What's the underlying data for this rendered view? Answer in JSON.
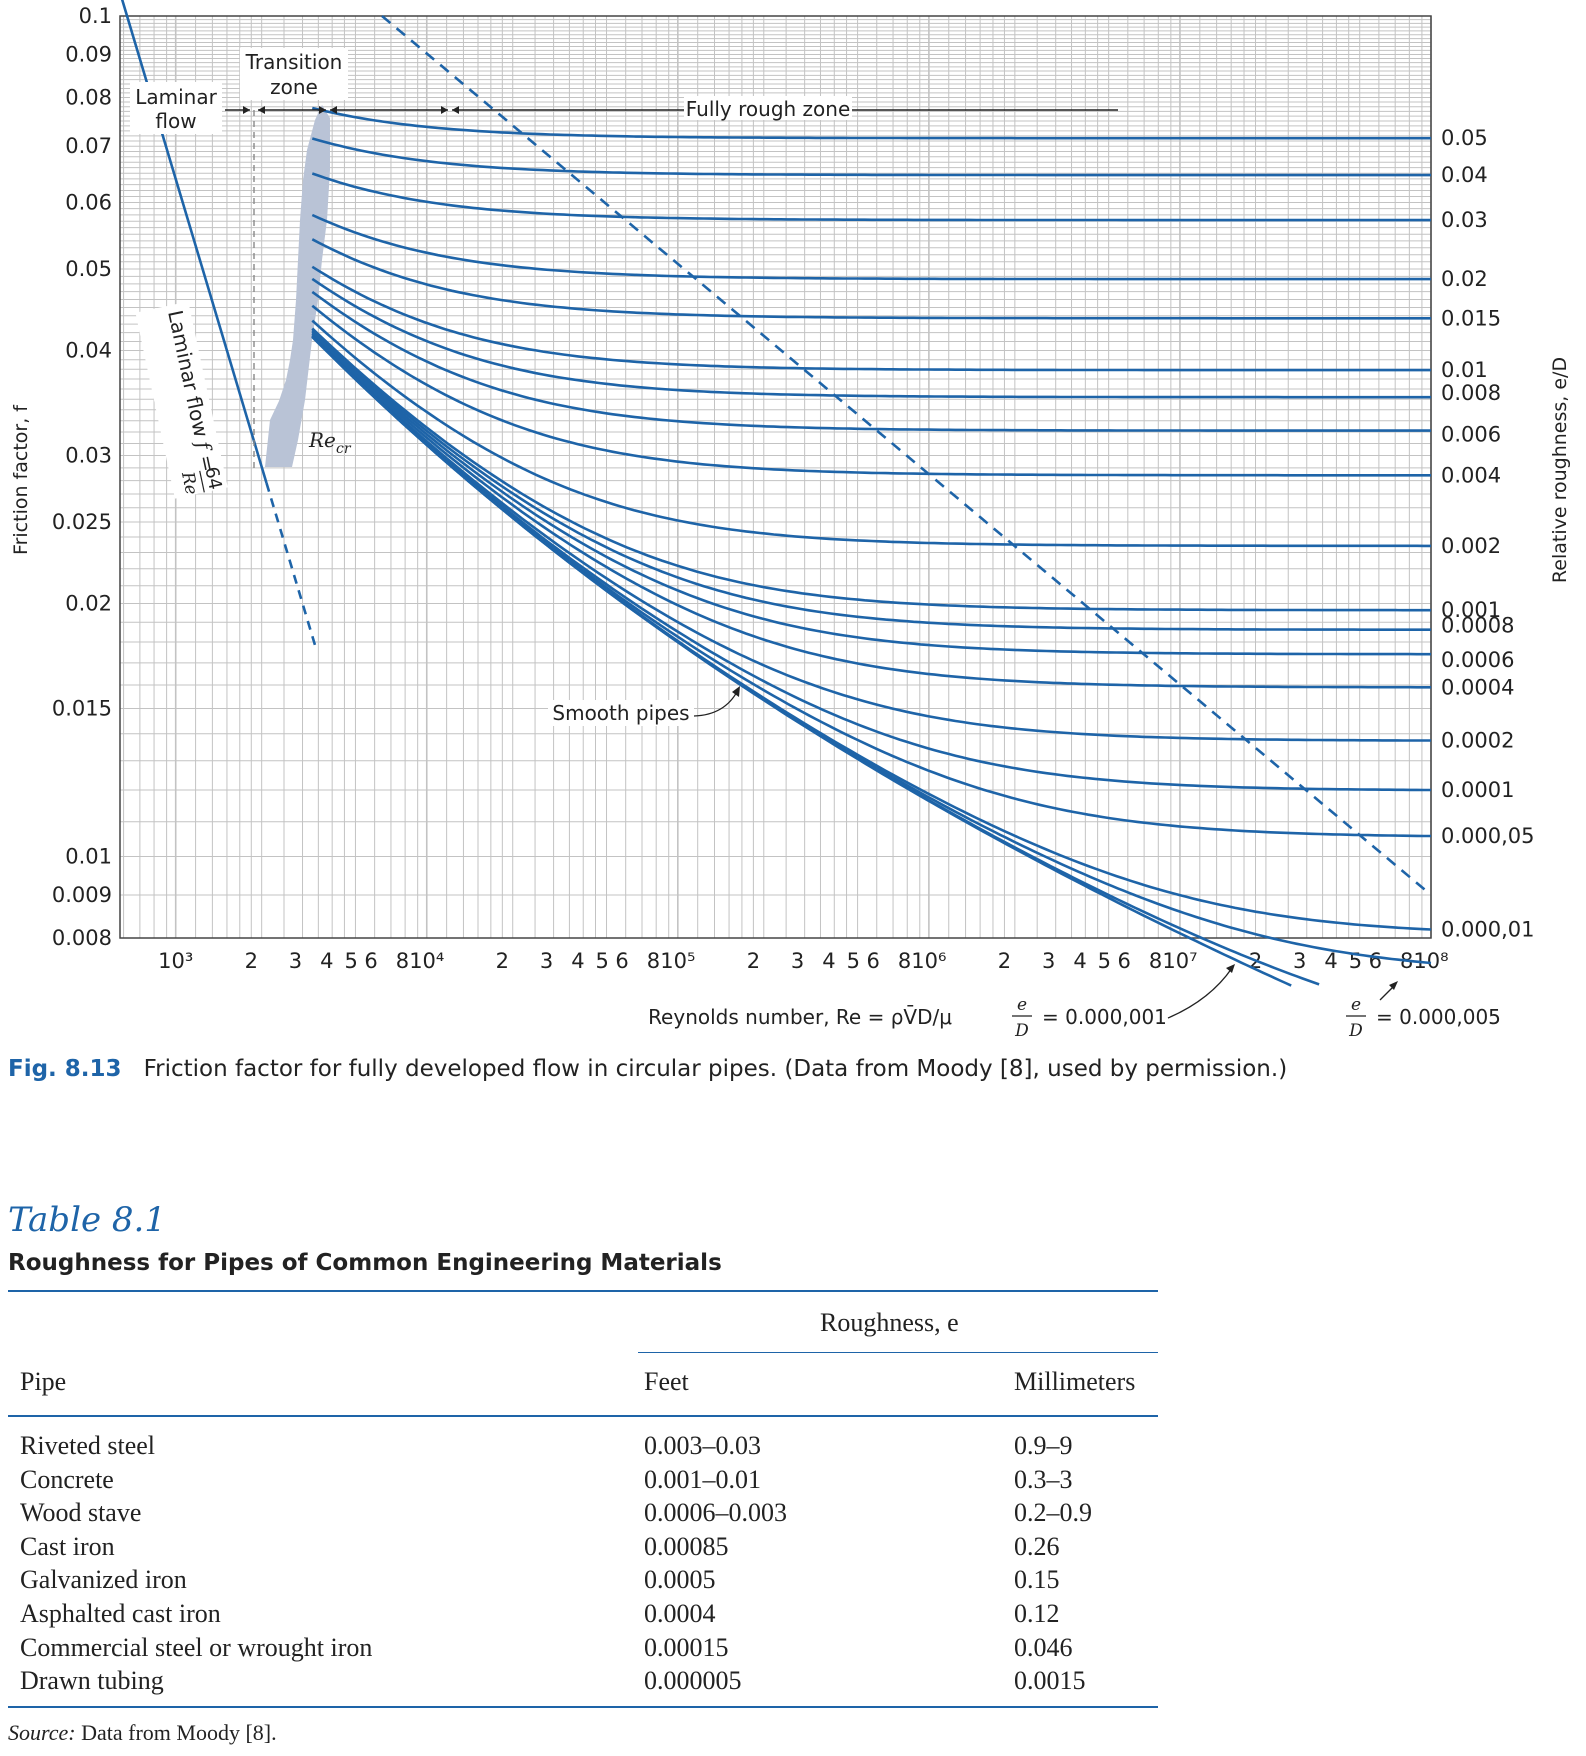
{
  "chart_data": {
    "type": "line",
    "xscale": "log",
    "yscale": "log",
    "xlim": [
      600,
      100000000
    ],
    "ylim": [
      0.008,
      0.1
    ],
    "grid": true,
    "xlabel": "Reynolds number, Re = ρV̄D/μ",
    "ylabel": "Friction factor, f",
    "y2label": "Relative roughness, e/D",
    "x_major_ticks": [
      {
        "value": 1000,
        "label": "10³"
      },
      {
        "value": 10000,
        "label": "10⁴"
      },
      {
        "value": 100000,
        "label": "10⁵"
      },
      {
        "value": 1000000,
        "label": "10⁶"
      },
      {
        "value": 10000000,
        "label": "10⁷"
      },
      {
        "value": 100000000,
        "label": "10⁸"
      }
    ],
    "x_minor_labels": [
      "2",
      "3",
      "4",
      "5",
      "6",
      "8"
    ],
    "y_ticks": [
      {
        "value": 0.1,
        "label": "0.1"
      },
      {
        "value": 0.09,
        "label": "0.09"
      },
      {
        "value": 0.08,
        "label": "0.08"
      },
      {
        "value": 0.07,
        "label": "0.07"
      },
      {
        "value": 0.06,
        "label": "0.06"
      },
      {
        "value": 0.05,
        "label": "0.05"
      },
      {
        "value": 0.04,
        "label": "0.04"
      },
      {
        "value": 0.03,
        "label": "0.03"
      },
      {
        "value": 0.025,
        "label": "0.025"
      },
      {
        "value": 0.02,
        "label": "0.02"
      },
      {
        "value": 0.015,
        "label": "0.015"
      },
      {
        "value": 0.01,
        "label": "0.01"
      },
      {
        "value": 0.009,
        "label": "0.009"
      },
      {
        "value": 0.008,
        "label": "0.008"
      }
    ],
    "roughness_curves": [
      {
        "label": "0.05",
        "value": 0.05
      },
      {
        "label": "0.04",
        "value": 0.04
      },
      {
        "label": "0.03",
        "value": 0.03
      },
      {
        "label": "0.02",
        "value": 0.02
      },
      {
        "label": "0.015",
        "value": 0.015
      },
      {
        "label": "0.01",
        "value": 0.01
      },
      {
        "label": "0.008",
        "value": 0.008
      },
      {
        "label": "0.006",
        "value": 0.006
      },
      {
        "label": "0.004",
        "value": 0.004
      },
      {
        "label": "0.002",
        "value": 0.002
      },
      {
        "label": "0.001",
        "value": 0.001
      },
      {
        "label": "0.0008",
        "value": 0.0008
      },
      {
        "label": "0.0006",
        "value": 0.0006
      },
      {
        "label": "0.0004",
        "value": 0.0004
      },
      {
        "label": "0.0002",
        "value": 0.0002
      },
      {
        "label": "0.0001",
        "value": 0.0001
      },
      {
        "label": "0.000,05",
        "value": 5e-05
      },
      {
        "label": "0.000,01",
        "value": 1e-05
      }
    ],
    "extra_curves": [
      {
        "value": 5e-06,
        "label": "e/D = 0.000,005"
      },
      {
        "value": 1e-06,
        "label": "e/D = 0.000,001"
      },
      {
        "value": 0,
        "label": "Smooth pipes"
      }
    ],
    "laminar": {
      "relation": "f = 64/Re",
      "label": "Laminar flow f = 64/Re"
    },
    "annotations": {
      "laminar_flow": "Laminar flow",
      "transition_zone": "Transition zone",
      "fully_rough_zone": "Fully rough zone",
      "re_cr": "Re_cr",
      "smooth_pipes": "Smooth pipes",
      "ed_0000001": "e/D = 0.000,001",
      "ed_0000005": "e/D = 0.000,005"
    },
    "colors": {
      "curve": "#1e64a8",
      "grid": "#c3c3c3",
      "shade": "#b9c3d6"
    }
  },
  "caption": {
    "number": "Fig. 8.13",
    "text": "Friction factor for fully developed flow in circular pipes. (Data from Moody [8], used by permission.)"
  },
  "table": {
    "title": "Table 8.1",
    "subtitle": "Roughness for Pipes of Common Engineering Materials",
    "group_header": "Roughness, e",
    "columns": [
      "Pipe",
      "Feet",
      "Millimeters"
    ],
    "rows": [
      [
        "Riveted steel",
        "0.003–0.03",
        "0.9–9"
      ],
      [
        "Concrete",
        "0.001–0.01",
        "0.3–3"
      ],
      [
        "Wood stave",
        "0.0006–0.003",
        "0.2–0.9"
      ],
      [
        "Cast iron",
        "0.00085",
        "0.26"
      ],
      [
        "Galvanized iron",
        "0.0005",
        "0.15"
      ],
      [
        "Asphalted cast iron",
        "0.0004",
        "0.12"
      ],
      [
        "Commercial steel or wrought iron",
        "0.00015",
        "0.046"
      ],
      [
        "Drawn tubing",
        "0.000005",
        "0.0015"
      ]
    ],
    "source_label": "Source:",
    "source_text": "Data from Moody [8]."
  }
}
